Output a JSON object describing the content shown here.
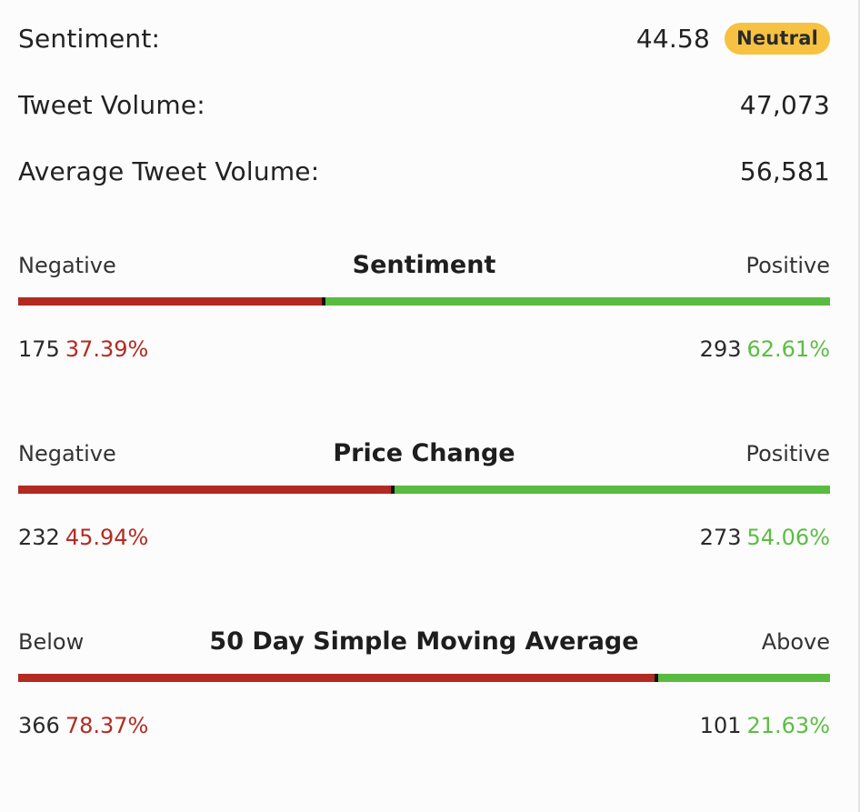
{
  "stats": {
    "sentiment": {
      "label": "Sentiment:",
      "value": "44.58",
      "badge": "Neutral"
    },
    "tweet_volume": {
      "label": "Tweet Volume:",
      "value": "47,073"
    },
    "avg_tweet_volume": {
      "label": "Average Tweet Volume:",
      "value": "56,581"
    }
  },
  "meters": [
    {
      "title": "Sentiment",
      "left_label": "Negative",
      "right_label": "Positive",
      "left_count": "175",
      "left_pct": "37.39%",
      "right_count": "293",
      "right_pct": "62.61%",
      "negative_fraction": 0.3739
    },
    {
      "title": "Price Change",
      "left_label": "Negative",
      "right_label": "Positive",
      "left_count": "232",
      "left_pct": "45.94%",
      "right_count": "273",
      "right_pct": "54.06%",
      "negative_fraction": 0.4594
    },
    {
      "title": "50 Day Simple Moving Average",
      "left_label": "Below",
      "right_label": "Above",
      "left_count": "366",
      "left_pct": "78.37%",
      "right_count": "101",
      "right_pct": "21.63%",
      "negative_fraction": 0.7837
    }
  ],
  "colors": {
    "negative": "#b22a22",
    "positive": "#59bb3f",
    "badge_neutral": "#f7c242"
  }
}
